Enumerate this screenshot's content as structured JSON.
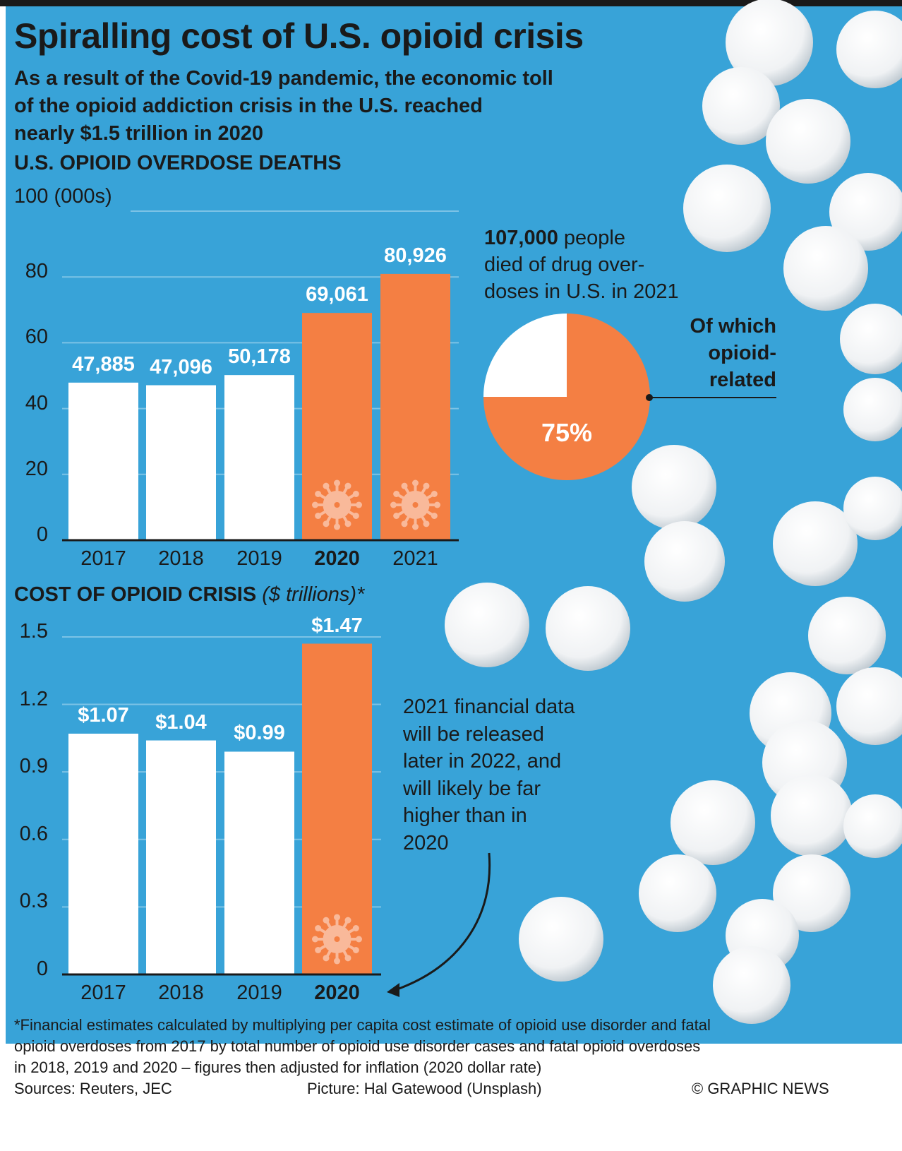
{
  "title": "Spiralling cost of U.S. opioid crisis",
  "subtitle": [
    "As a result of the Covid-19 pandemic, the economic toll",
    "of the opioid addiction crisis in the U.S. reached",
    "nearly $1.5 trillion in 2020"
  ],
  "colors": {
    "background": "#38a3d8",
    "highlight": "#f47f43",
    "base": "#ffffff",
    "text": "#1a1a1a"
  },
  "chart_data": [
    {
      "type": "bar",
      "title": "U.S. OPIOID OVERDOSE DEATHS",
      "ylabel": "100 (000s)",
      "ylim": [
        0,
        100
      ],
      "yticks": [
        "0",
        "20",
        "40",
        "60",
        "80"
      ],
      "categories": [
        "2017",
        "2018",
        "2019",
        "2020",
        "2021"
      ],
      "values": [
        47.885,
        47.096,
        50.178,
        69.061,
        80.926
      ],
      "labels": [
        "47,885",
        "47,096",
        "50,178",
        "69,061",
        "80,926"
      ],
      "highlighted": [
        false,
        false,
        false,
        true,
        true
      ],
      "bold_categories": [
        false,
        false,
        false,
        true,
        false
      ],
      "icon": "virus-icon"
    },
    {
      "type": "bar",
      "title": "COST OF OPIOID CRISIS",
      "title_suffix": "($ trillions)*",
      "ylim": [
        0,
        1.5
      ],
      "yticks": [
        "0",
        "0.3",
        "0.6",
        "0.9",
        "1.2",
        "1.5"
      ],
      "categories": [
        "2017",
        "2018",
        "2019",
        "2020"
      ],
      "values": [
        1.07,
        1.04,
        0.99,
        1.47
      ],
      "labels": [
        "$1.07",
        "$1.04",
        "$0.99",
        "$1.47"
      ],
      "highlighted": [
        false,
        false,
        false,
        true
      ],
      "bold_categories": [
        false,
        false,
        false,
        true
      ]
    },
    {
      "type": "pie",
      "values": [
        75,
        25
      ],
      "labels": [
        "75%",
        ""
      ],
      "annotation": "Of which opioid-related"
    }
  ],
  "pie_text": {
    "bold": "107,000",
    "rest1": " people",
    "line2": "died of drug over-",
    "line3": "doses in U.S. in 2021",
    "callout": [
      "Of which",
      "opioid-",
      "related"
    ]
  },
  "note": [
    "2021 financial data",
    "will be released",
    "later in 2022, and",
    "will likely be far",
    "higher than in",
    "2020"
  ],
  "footer": {
    "lines": [
      "*Financial estimates calculated by multiplying per capita cost estimate of opioid use disorder and fatal",
      "opioid overdoses from 2017 by total number of opioid use disorder cases and fatal opioid overdoses",
      "in 2018, 2019 and 2020 – figures then adjusted for inflation (2020 dollar rate)"
    ],
    "sources": "Sources: Reuters, JEC",
    "picture": "Picture: Hal Gatewood (Unsplash)",
    "credit": "© GRAPHIC NEWS"
  }
}
